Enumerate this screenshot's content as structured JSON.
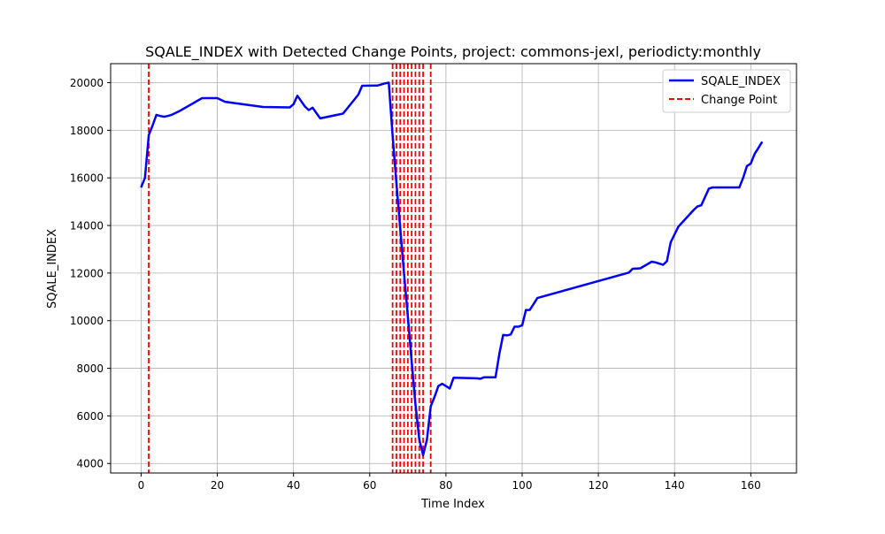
{
  "chart_data": {
    "type": "line",
    "title": "SQALE_INDEX with Detected Change Points, project: commons-jexl, periodicty:monthly",
    "xlabel": "Time Index",
    "ylabel": "SQALE_INDEX",
    "xlim": [
      -8,
      172
    ],
    "ylim": [
      3600,
      20800
    ],
    "xticks": [
      0,
      20,
      40,
      60,
      80,
      100,
      120,
      140,
      160
    ],
    "yticks": [
      4000,
      6000,
      8000,
      10000,
      12000,
      14000,
      16000,
      18000,
      20000
    ],
    "grid": true,
    "legend": {
      "position": "top-right",
      "entries": [
        "SQALE_INDEX",
        "Change Point"
      ]
    },
    "series": [
      {
        "name": "SQALE_INDEX",
        "color": "#0000ff",
        "x": [
          0,
          1,
          2,
          3,
          4,
          5,
          6,
          7,
          8,
          10,
          16,
          20,
          22,
          32,
          39,
          40,
          41,
          43,
          44,
          45,
          47,
          53,
          56,
          57,
          58,
          62,
          64,
          65,
          66,
          67,
          68,
          69,
          70,
          71,
          72,
          73,
          74,
          75,
          76,
          77,
          78,
          79,
          80,
          81,
          82,
          88,
          89,
          90,
          93,
          94,
          95,
          96,
          97,
          98,
          99,
          100,
          101,
          102,
          103,
          104,
          128,
          129,
          131,
          134,
          135,
          137,
          138,
          139,
          141,
          143,
          145,
          146,
          147,
          149,
          150,
          157,
          158,
          159,
          160,
          161,
          163
        ],
        "y": [
          15600,
          16000,
          17800,
          18200,
          18650,
          18600,
          18570,
          18600,
          18650,
          18800,
          19350,
          19350,
          19200,
          18980,
          18960,
          19100,
          19450,
          19000,
          18850,
          18950,
          18500,
          18700,
          19300,
          19500,
          19870,
          19880,
          19970,
          20000,
          17800,
          15800,
          13900,
          12000,
          10200,
          8300,
          6500,
          5000,
          4350,
          5000,
          6400,
          6800,
          7250,
          7350,
          7250,
          7150,
          7600,
          7580,
          7560,
          7620,
          7620,
          8600,
          9400,
          9380,
          9420,
          9750,
          9750,
          9800,
          10450,
          10450,
          10700,
          10950,
          12020,
          12180,
          12200,
          12480,
          12450,
          12350,
          12500,
          13300,
          13950,
          14300,
          14650,
          14800,
          14850,
          15550,
          15600,
          15600,
          16000,
          16500,
          16600,
          17000,
          17520
        ]
      }
    ],
    "change_points": {
      "name": "Change Point",
      "color": "#ff0000",
      "x": [
        2,
        66,
        67,
        68,
        69,
        70,
        71,
        72,
        73,
        74,
        76
      ]
    }
  }
}
